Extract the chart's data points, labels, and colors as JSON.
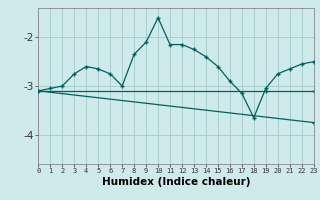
{
  "xlabel": "Humidex (Indice chaleur)",
  "background_color": "#ceeaea",
  "grid_color": "#aacece",
  "line_color": "#006060",
  "xlim": [
    0,
    23
  ],
  "ylim": [
    -4.6,
    -1.4
  ],
  "yticks": [
    -4,
    -3,
    -2
  ],
  "xticks": [
    0,
    1,
    2,
    3,
    4,
    5,
    6,
    7,
    8,
    9,
    10,
    11,
    12,
    13,
    14,
    15,
    16,
    17,
    18,
    19,
    20,
    21,
    22,
    23
  ],
  "curve1_x": [
    0,
    1,
    2,
    3,
    4,
    5,
    6,
    7,
    8,
    9,
    10,
    11,
    12,
    13,
    14,
    15,
    16,
    17,
    18,
    19,
    20,
    21,
    22,
    23
  ],
  "curve1_y": [
    -3.1,
    -3.05,
    -3.0,
    -2.75,
    -2.6,
    -2.65,
    -2.75,
    -3.0,
    -2.35,
    -2.1,
    -1.6,
    -2.15,
    -2.15,
    -2.25,
    -2.4,
    -2.6,
    -2.9,
    -3.15,
    -3.65,
    -3.05,
    -2.75,
    -2.65,
    -2.55,
    -2.5
  ],
  "curve2_x": [
    0,
    19,
    23
  ],
  "curve2_y": [
    -3.1,
    -3.1,
    -3.1
  ],
  "curve3_x": [
    0,
    23
  ],
  "curve3_y": [
    -3.1,
    -3.75
  ]
}
